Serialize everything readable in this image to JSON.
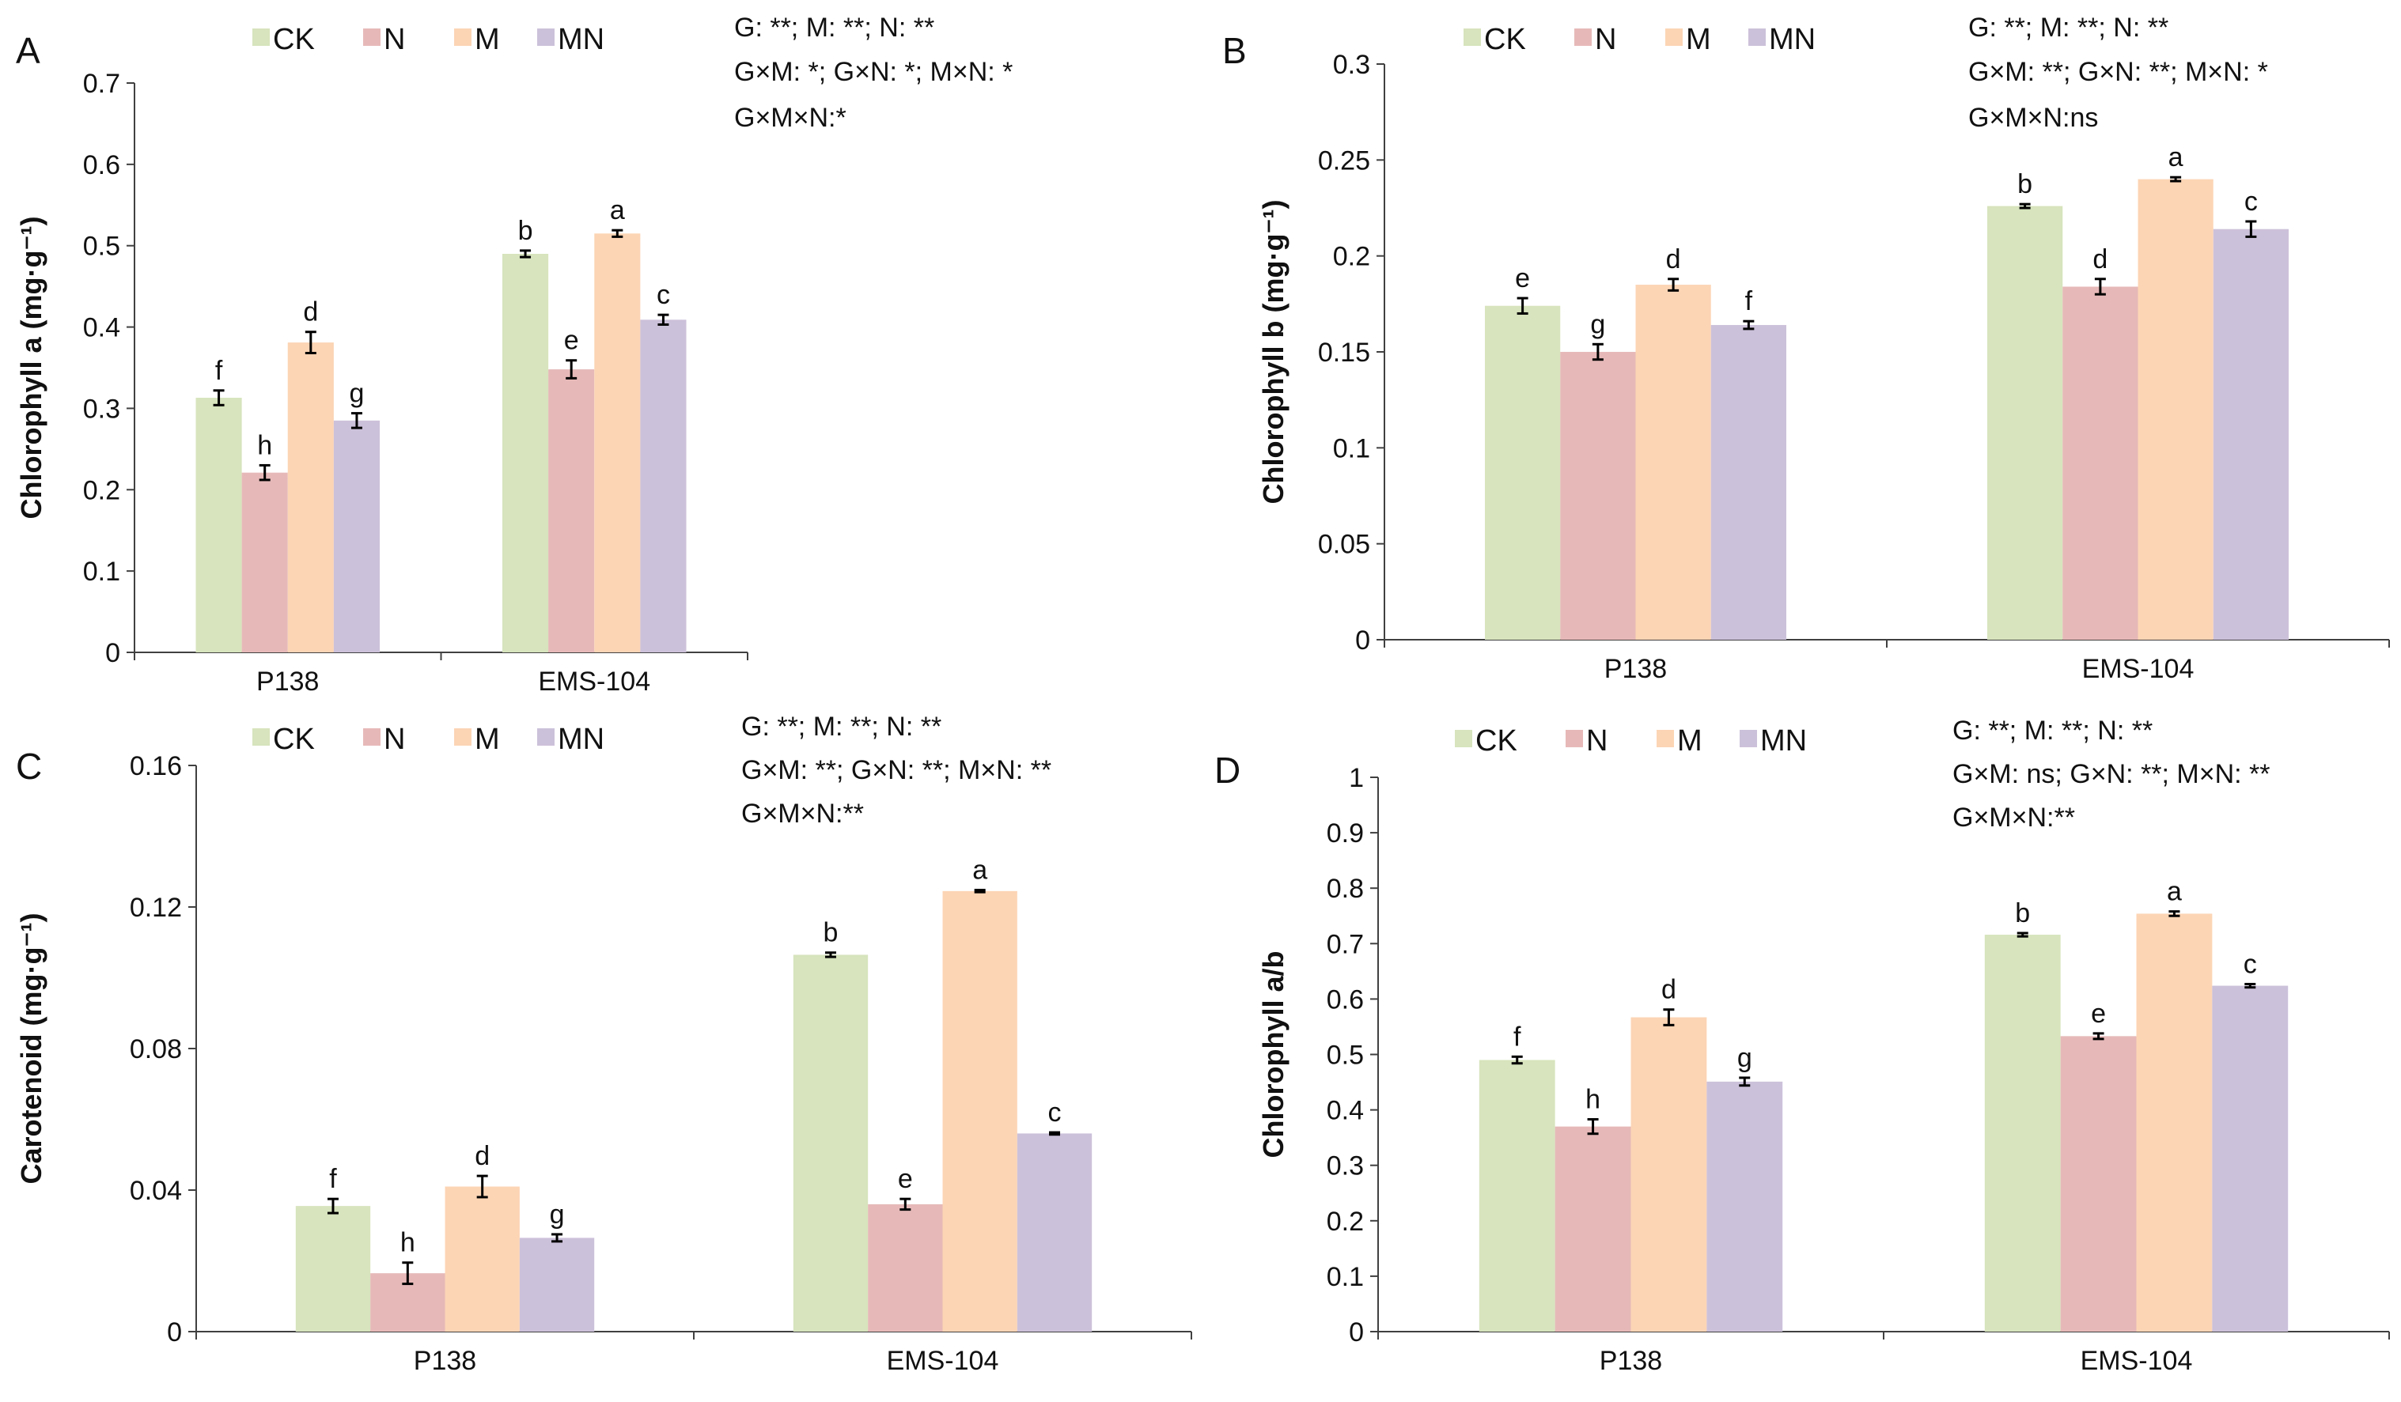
{
  "colors": {
    "CK": "#d7e4bd",
    "N": "#e6b9b8",
    "M": "#fcd5b5",
    "MN": "#ccc1da",
    "axis": "#404040"
  },
  "chart_data": [
    {
      "type": "bar",
      "panel": "A",
      "ylabel": "Chlorophyll a (mg·g⁻¹)",
      "ylim": [
        0,
        0.7
      ],
      "ystep": 0.1,
      "yticks": [
        "0",
        "0.1",
        "0.2",
        "0.3",
        "0.4",
        "0.5",
        "0.6",
        "0.7"
      ],
      "categories": [
        "P138",
        "EMS-104"
      ],
      "legend": [
        "CK",
        "N",
        "M",
        "MN"
      ],
      "series": [
        {
          "name": "CK",
          "values": [
            0.313,
            0.49
          ],
          "errors": [
            0.009,
            0.004
          ],
          "letters": [
            "f",
            "b"
          ]
        },
        {
          "name": "N",
          "values": [
            0.221,
            0.348
          ],
          "errors": [
            0.009,
            0.011
          ],
          "letters": [
            "h",
            "e"
          ]
        },
        {
          "name": "M",
          "values": [
            0.381,
            0.515
          ],
          "errors": [
            0.013,
            0.004
          ],
          "letters": [
            "d",
            "a"
          ]
        },
        {
          "name": "MN",
          "values": [
            0.285,
            0.409
          ],
          "errors": [
            0.009,
            0.006
          ],
          "letters": [
            "g",
            "c"
          ]
        }
      ],
      "annotations": [
        "G: **; M: **; N: **",
        "G×M: *; G×N: *; M×N: *",
        "G×M×N:*"
      ]
    },
    {
      "type": "bar",
      "panel": "B",
      "ylabel": "Chlorophyll b (mg·g⁻¹)",
      "ylim": [
        0,
        0.3
      ],
      "ystep": 0.05,
      "yticks": [
        "0",
        "0.05",
        "0.1",
        "0.15",
        "0.2",
        "0.25",
        "0.3"
      ],
      "categories": [
        "P138",
        "EMS-104"
      ],
      "legend": [
        "CK",
        "N",
        "M",
        "MN"
      ],
      "series": [
        {
          "name": "CK",
          "values": [
            0.174,
            0.226
          ],
          "errors": [
            0.004,
            0.001
          ],
          "letters": [
            "e",
            "b"
          ]
        },
        {
          "name": "N",
          "values": [
            0.15,
            0.184
          ],
          "errors": [
            0.004,
            0.004
          ],
          "letters": [
            "g",
            "d"
          ]
        },
        {
          "name": "M",
          "values": [
            0.185,
            0.24
          ],
          "errors": [
            0.003,
            0.001
          ],
          "letters": [
            "d",
            "a"
          ]
        },
        {
          "name": "MN",
          "values": [
            0.164,
            0.214
          ],
          "errors": [
            0.002,
            0.004
          ],
          "letters": [
            "f",
            "c"
          ]
        }
      ],
      "annotations": [
        "G: **; M: **; N: **",
        "G×M: **; G×N: **; M×N: *",
        "G×M×N:ns"
      ]
    },
    {
      "type": "bar",
      "panel": "C",
      "ylabel": "Carotenoid (mg·g⁻¹)",
      "ylim": [
        0,
        0.16
      ],
      "ystep": 0.04,
      "yticks": [
        "0",
        "0.04",
        "0.08",
        "0.12",
        "0.16"
      ],
      "categories": [
        "P138",
        "EMS-104"
      ],
      "legend": [
        "CK",
        "N",
        "M",
        "MN"
      ],
      "series": [
        {
          "name": "CK",
          "values": [
            0.0355,
            0.1065
          ],
          "errors": [
            0.002,
            0.0006
          ],
          "letters": [
            "f",
            "b"
          ]
        },
        {
          "name": "N",
          "values": [
            0.0165,
            0.036
          ],
          "errors": [
            0.003,
            0.0015
          ],
          "letters": [
            "h",
            "e"
          ]
        },
        {
          "name": "M",
          "values": [
            0.041,
            0.1245
          ],
          "errors": [
            0.003,
            0.0003
          ],
          "letters": [
            "d",
            "a"
          ]
        },
        {
          "name": "MN",
          "values": [
            0.0265,
            0.056
          ],
          "errors": [
            0.001,
            0.0003
          ],
          "letters": [
            "g",
            "c"
          ]
        }
      ],
      "annotations": [
        "G: **; M: **; N: **",
        "G×M: **; G×N: **; M×N: **",
        "G×M×N:**"
      ]
    },
    {
      "type": "bar",
      "panel": "D",
      "ylabel": "Chlorophyll a/b",
      "ylim": [
        0,
        1
      ],
      "ystep": 0.1,
      "yticks": [
        "0",
        "0.1",
        "0.2",
        "0.3",
        "0.4",
        "0.5",
        "0.6",
        "0.7",
        "0.8",
        "0.9",
        "1"
      ],
      "categories": [
        "P138",
        "EMS-104"
      ],
      "legend": [
        "CK",
        "N",
        "M",
        "MN"
      ],
      "series": [
        {
          "name": "CK",
          "values": [
            0.49,
            0.716
          ],
          "errors": [
            0.006,
            0.003
          ],
          "letters": [
            "f",
            "b"
          ]
        },
        {
          "name": "N",
          "values": [
            0.37,
            0.533
          ],
          "errors": [
            0.013,
            0.005
          ],
          "letters": [
            "h",
            "e"
          ]
        },
        {
          "name": "M",
          "values": [
            0.567,
            0.754
          ],
          "errors": [
            0.014,
            0.004
          ],
          "letters": [
            "d",
            "a"
          ]
        },
        {
          "name": "MN",
          "values": [
            0.451,
            0.624
          ],
          "errors": [
            0.007,
            0.003
          ],
          "letters": [
            "g",
            "c"
          ]
        }
      ],
      "annotations": [
        "G: **; M: **; N: **",
        "G×M: ns; G×N: **; M×N: **",
        "G×M×N:**"
      ]
    }
  ]
}
